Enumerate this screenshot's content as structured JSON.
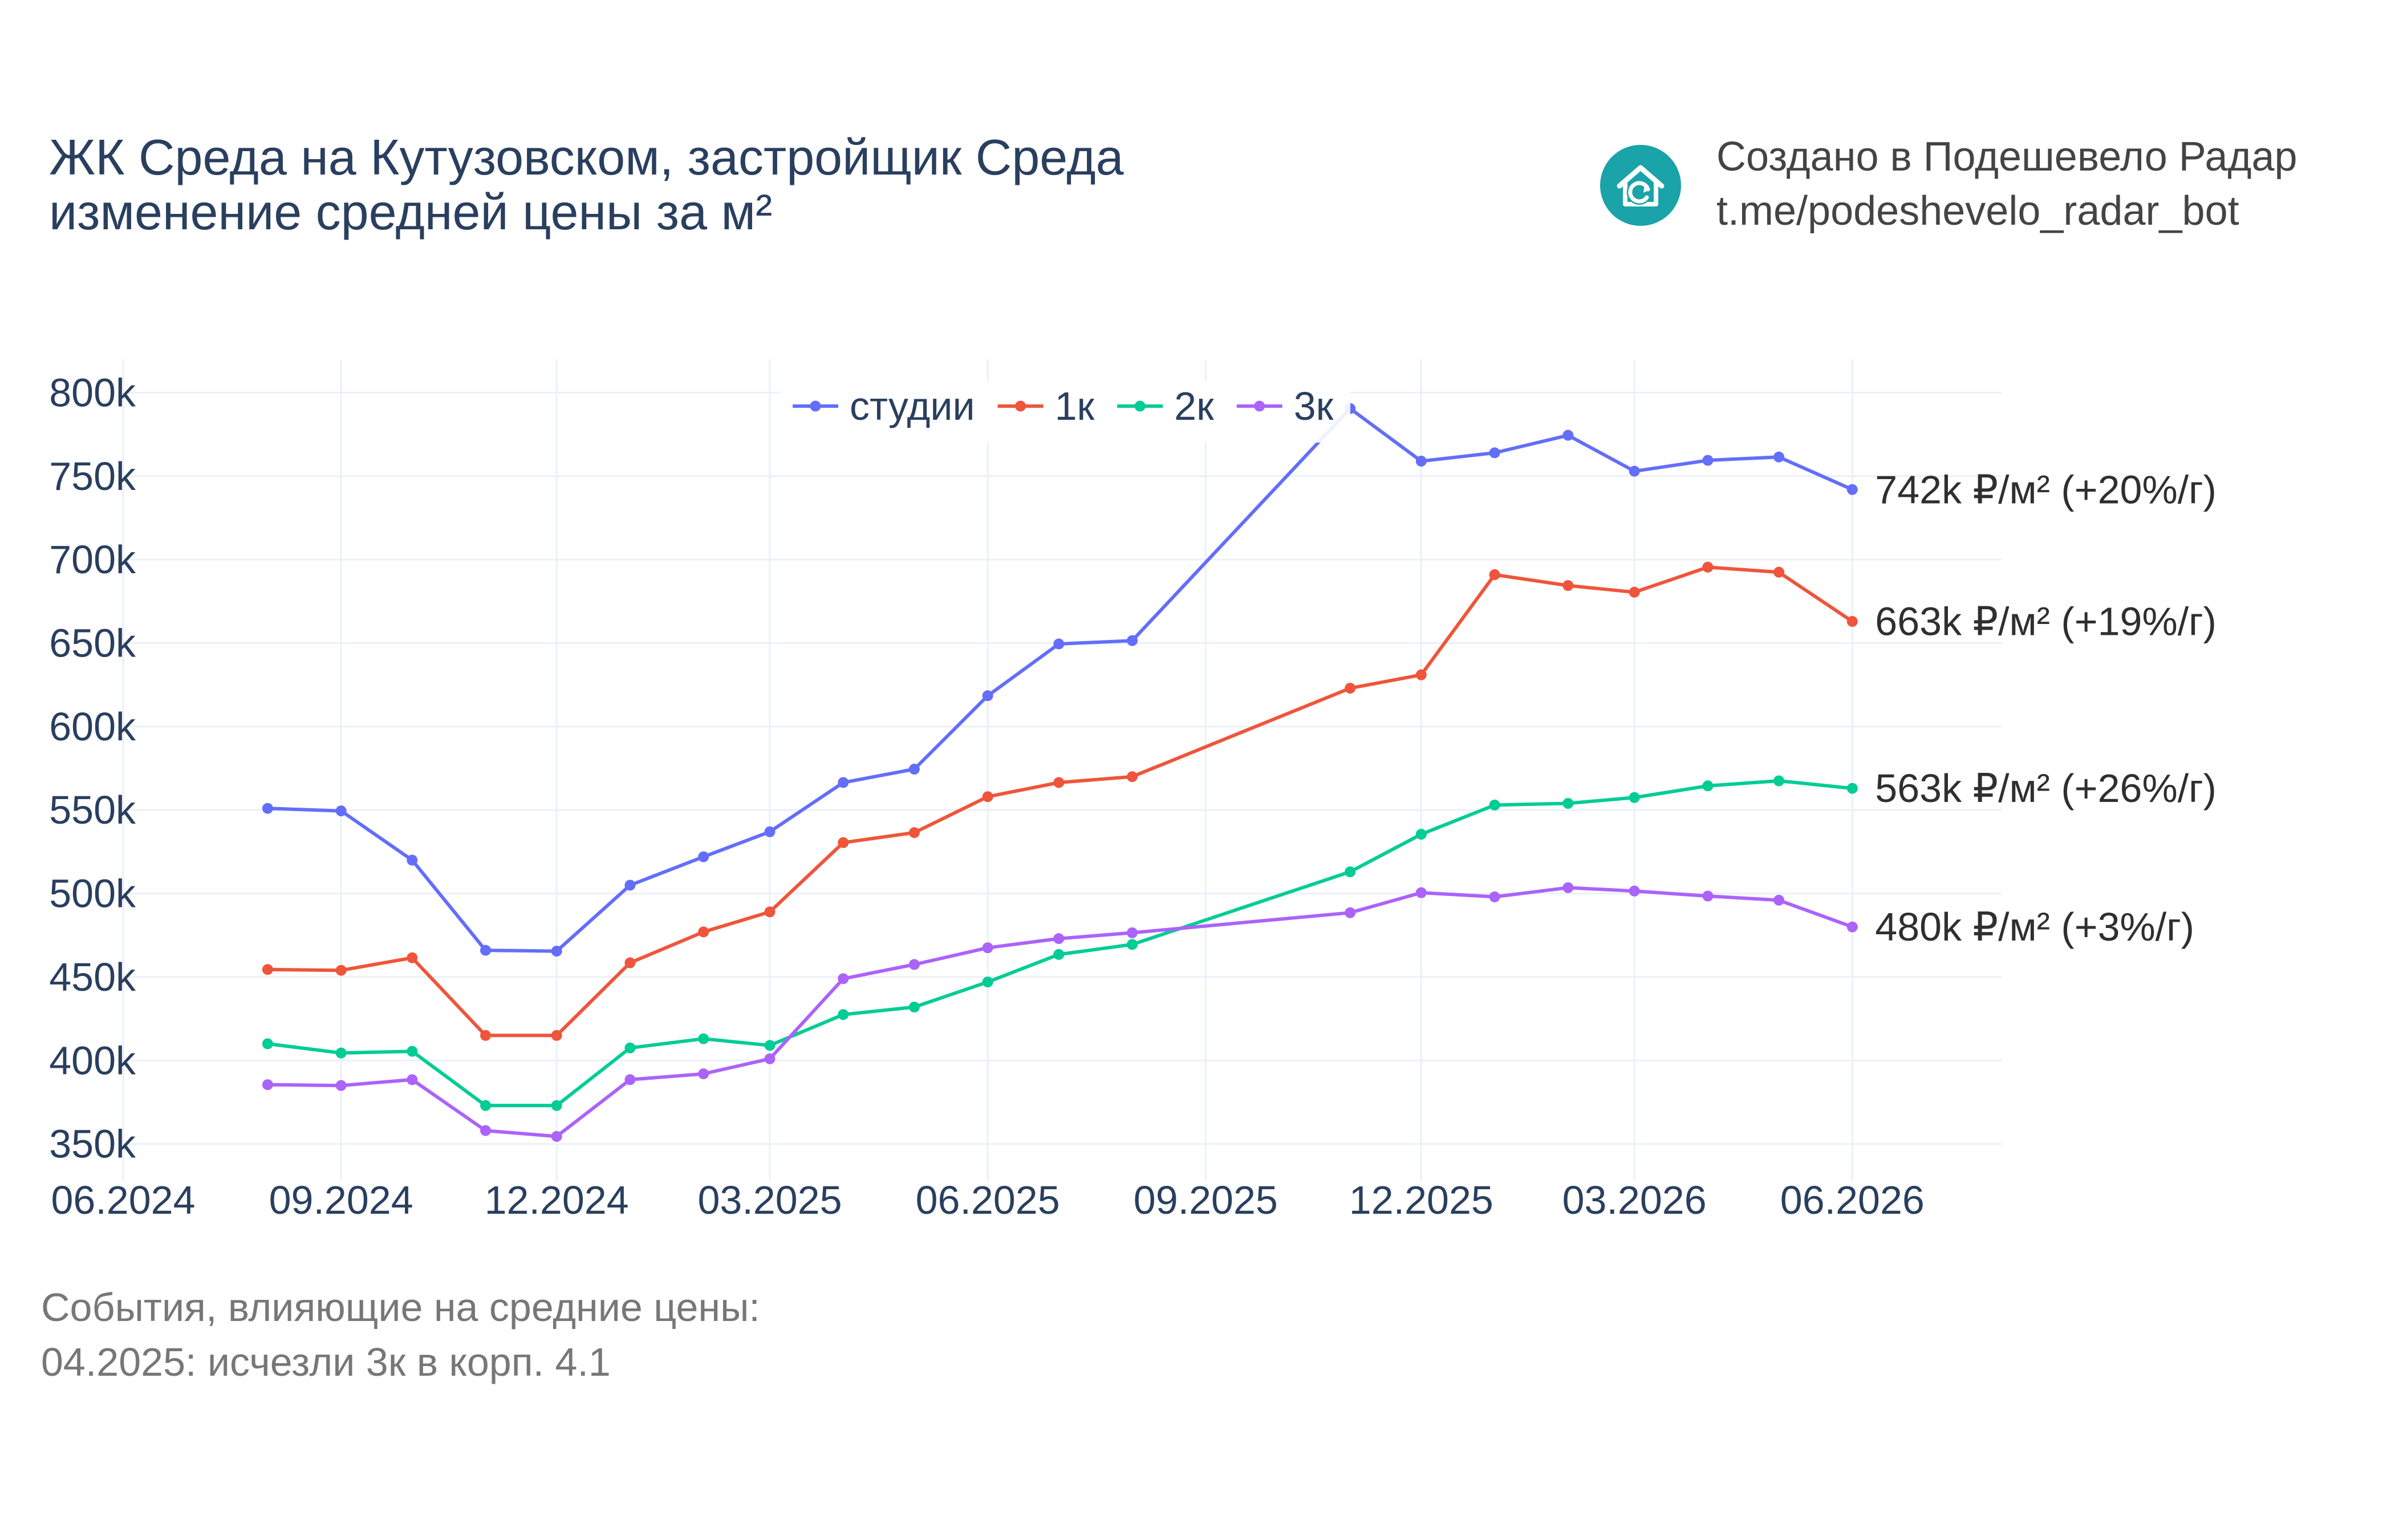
{
  "header": {
    "title_line1": "ЖК Среда на Кутузовском, застройщик Среда",
    "title_line2": "изменение средней цены за м²",
    "credit_line1": "Создано в Подешевело Радар",
    "credit_line2": "t.me/podeshevelo_radar_bot",
    "logo_icon": "house-refresh-icon",
    "logo_color": "#1aa3a8"
  },
  "events": {
    "heading": "События, влияющие на средние цены:",
    "items": [
      "04.2025: исчезли 3к в корп. 4.1"
    ]
  },
  "chart_data": {
    "type": "line",
    "x_tick_labels": [
      "06.2024",
      "09.2024",
      "12.2024",
      "03.2025",
      "06.2025",
      "09.2025",
      "12.2025",
      "03.2026",
      "06.2026"
    ],
    "y_tick_labels": [
      "350k",
      "400k",
      "450k",
      "500k",
      "550k",
      "600k",
      "650k",
      "700k",
      "750k",
      "800k"
    ],
    "y_ticks": [
      350000,
      400000,
      450000,
      500000,
      550000,
      600000,
      650000,
      700000,
      750000,
      800000
    ],
    "ylim": [
      328000,
      820000
    ],
    "xlim": [
      "2024-06-01",
      "2026-08-03"
    ],
    "grid": true,
    "legend_position": "top-center",
    "series": [
      {
        "name": "студии",
        "color": "#636efa",
        "end_label": "742k ₽/м² (+20%/г)",
        "points": [
          [
            "2024-08-01",
            551000
          ],
          [
            "2024-09-01",
            549500
          ],
          [
            "2024-10-01",
            520000
          ],
          [
            "2024-11-01",
            466000
          ],
          [
            "2024-12-01",
            465500
          ],
          [
            "2025-01-01",
            505000
          ],
          [
            "2025-02-01",
            522000
          ],
          [
            "2025-03-01",
            537000
          ],
          [
            "2025-04-01",
            566500
          ],
          [
            "2025-05-01",
            574500
          ],
          [
            "2025-06-01",
            618500
          ],
          [
            "2025-07-01",
            649500
          ],
          [
            "2025-08-01",
            651500
          ],
          [
            "2025-11-01",
            790500
          ],
          [
            "2025-12-01",
            759000
          ],
          [
            "2026-01-01",
            764000
          ],
          [
            "2026-02-01",
            774500
          ],
          [
            "2026-03-01",
            753000
          ],
          [
            "2026-04-01",
            759500
          ],
          [
            "2026-05-01",
            761500
          ],
          [
            "2026-06-01",
            742000
          ]
        ]
      },
      {
        "name": "1к",
        "color": "#ef553b",
        "end_label": "663k ₽/м² (+19%/г)",
        "points": [
          [
            "2024-08-01",
            454500
          ],
          [
            "2024-09-01",
            454000
          ],
          [
            "2024-10-01",
            461500
          ],
          [
            "2024-11-01",
            415000
          ],
          [
            "2024-12-01",
            415000
          ],
          [
            "2025-01-01",
            458500
          ],
          [
            "2025-02-01",
            477000
          ],
          [
            "2025-03-01",
            489000
          ],
          [
            "2025-04-01",
            530500
          ],
          [
            "2025-05-01",
            536500
          ],
          [
            "2025-06-01",
            558000
          ],
          [
            "2025-07-01",
            566500
          ],
          [
            "2025-08-01",
            570000
          ],
          [
            "2025-11-01",
            623000
          ],
          [
            "2025-12-01",
            631000
          ],
          [
            "2026-01-01",
            691000
          ],
          [
            "2026-02-01",
            684500
          ],
          [
            "2026-03-01",
            680500
          ],
          [
            "2026-04-01",
            695500
          ],
          [
            "2026-05-01",
            692500
          ],
          [
            "2026-06-01",
            663000
          ]
        ]
      },
      {
        "name": "2к",
        "color": "#00cc96",
        "end_label": "563k ₽/м² (+26%/г)",
        "points": [
          [
            "2024-08-01",
            410000
          ],
          [
            "2024-09-01",
            404500
          ],
          [
            "2024-10-01",
            405500
          ],
          [
            "2024-11-01",
            373000
          ],
          [
            "2024-12-01",
            373000
          ],
          [
            "2025-01-01",
            407500
          ],
          [
            "2025-02-01",
            413000
          ],
          [
            "2025-03-01",
            409000
          ],
          [
            "2025-04-01",
            427500
          ],
          [
            "2025-05-01",
            432000
          ],
          [
            "2025-06-01",
            447000
          ],
          [
            "2025-07-01",
            463500
          ],
          [
            "2025-08-01",
            469500
          ],
          [
            "2025-11-01",
            513000
          ],
          [
            "2025-12-01",
            535500
          ],
          [
            "2026-01-01",
            553000
          ],
          [
            "2026-02-01",
            554000
          ],
          [
            "2026-03-01",
            557500
          ],
          [
            "2026-04-01",
            564500
          ],
          [
            "2026-05-01",
            567500
          ],
          [
            "2026-06-01",
            563000
          ]
        ]
      },
      {
        "name": "3к",
        "color": "#ab63fa",
        "end_label": "480k ₽/м² (+3%/г)",
        "points": [
          [
            "2024-08-01",
            385500
          ],
          [
            "2024-09-01",
            385000
          ],
          [
            "2024-10-01",
            388500
          ],
          [
            "2024-11-01",
            358000
          ],
          [
            "2024-12-01",
            354500
          ],
          [
            "2025-01-01",
            388500
          ],
          [
            "2025-02-01",
            392000
          ],
          [
            "2025-03-01",
            401000
          ],
          [
            "2025-04-01",
            449000
          ],
          [
            "2025-05-01",
            457500
          ],
          [
            "2025-06-01",
            467500
          ],
          [
            "2025-07-01",
            473000
          ],
          [
            "2025-08-01",
            476500
          ],
          [
            "2025-11-01",
            488500
          ],
          [
            "2025-12-01",
            500500
          ],
          [
            "2026-01-01",
            498000
          ],
          [
            "2026-02-01",
            503500
          ],
          [
            "2026-03-01",
            501500
          ],
          [
            "2026-04-01",
            498500
          ],
          [
            "2026-05-01",
            496000
          ],
          [
            "2026-06-01",
            480000
          ]
        ]
      }
    ]
  }
}
